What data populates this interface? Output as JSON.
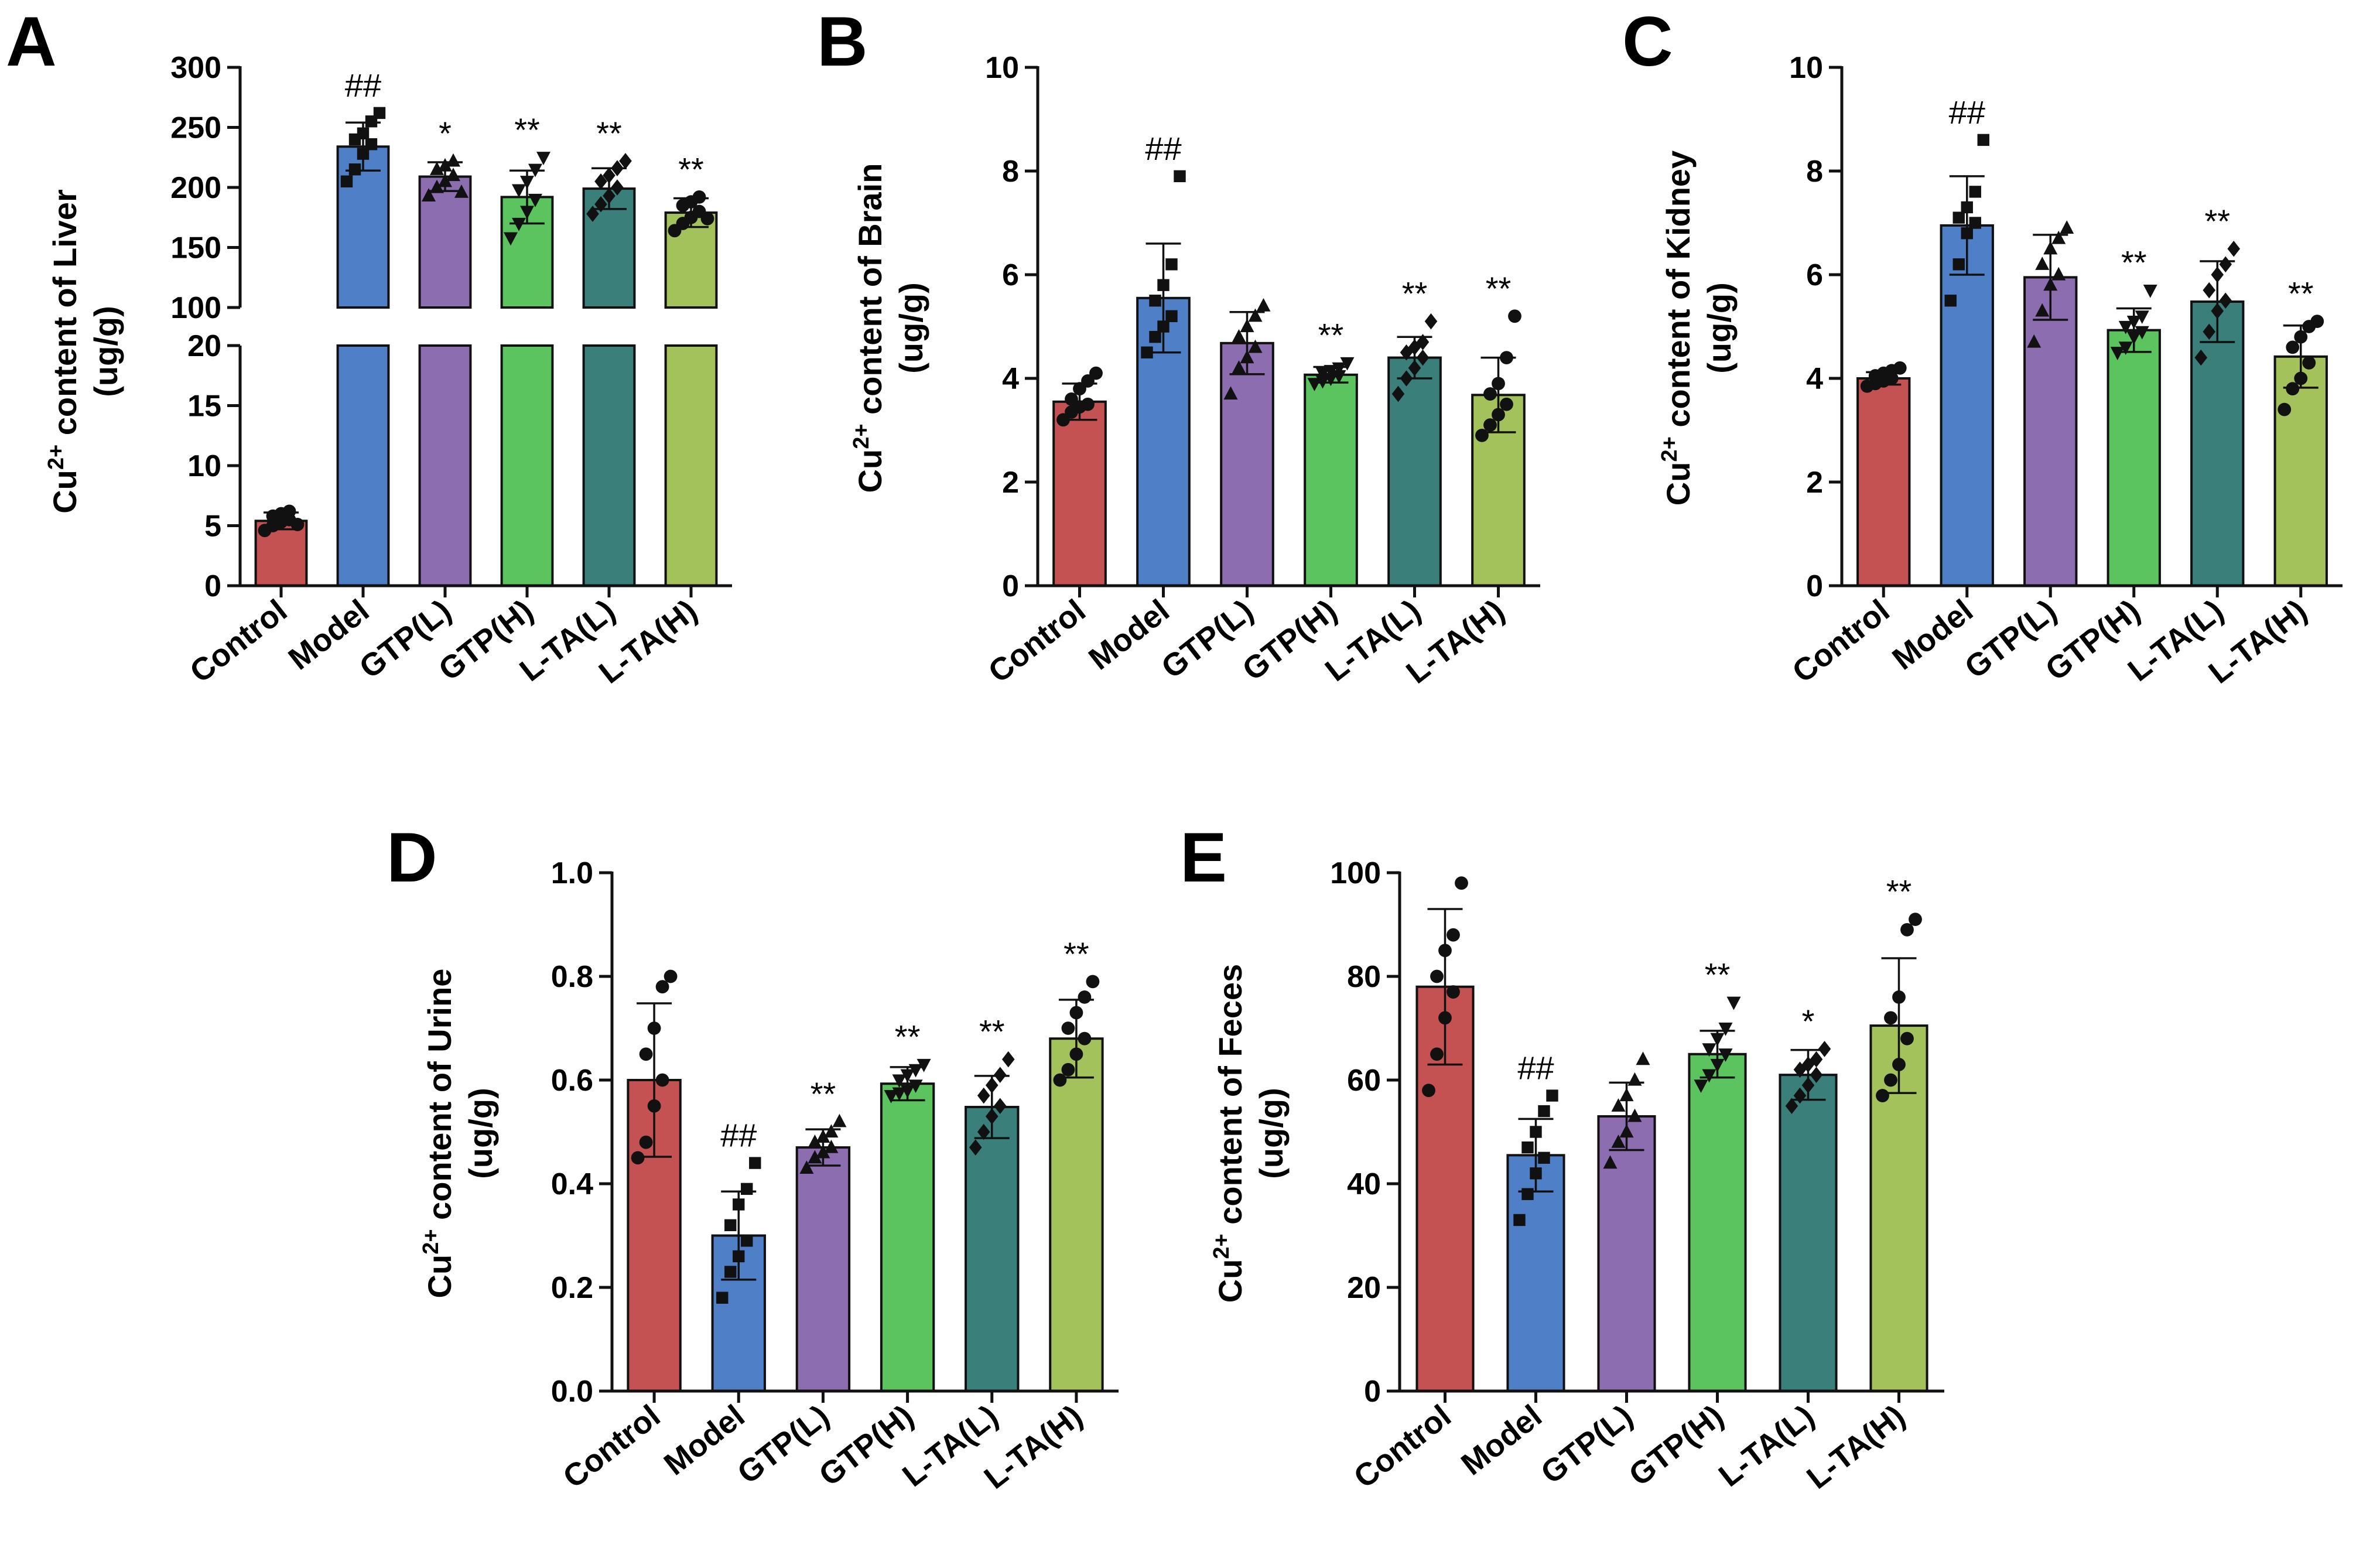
{
  "chart_data": [
    {
      "panel": "A",
      "type": "bar",
      "categories": [
        "Control",
        "Model",
        "GTP(L)",
        "GTP(H)",
        "L-TA(L)",
        "L-TA(H)"
      ],
      "colors": [
        "#c55252",
        "#4f7fc6",
        "#8b6db0",
        "#5bc45e",
        "#3a7f7a",
        "#a3c25c"
      ],
      "ylabel_line1": "Cu",
      "ylabel_sup": "2+",
      "ylabel_line1_rest": " content of Liver",
      "ylabel_line2": "(ug/g)",
      "broken_axis": true,
      "ylim_lower": [
        0,
        20
      ],
      "ylim_upper": [
        100,
        300
      ],
      "ticks_lower": [
        0,
        5,
        10,
        15,
        20
      ],
      "ticks_upper": [
        100,
        150,
        200,
        250,
        300
      ],
      "tick_labels_lower": [
        "0",
        "5",
        "10",
        "15",
        "20"
      ],
      "tick_labels_upper": [
        "100",
        "150",
        "200",
        "250",
        "300"
      ],
      "values": [
        5.4,
        234,
        209,
        192,
        199,
        179
      ],
      "sd": [
        0.7,
        20,
        12,
        22,
        17,
        12
      ],
      "markers": [
        "circle",
        "square",
        "triangle",
        "tri-down",
        "diamond",
        "circle"
      ],
      "points": [
        [
          4.6,
          5.0,
          5.3,
          5.5,
          5.8,
          6.0,
          6.2,
          5.1
        ],
        [
          205,
          215,
          228,
          236,
          240,
          245,
          255,
          262
        ],
        [
          193,
          200,
          205,
          210,
          215,
          218,
          222,
          196
        ],
        [
          158,
          170,
          180,
          190,
          198,
          205,
          215,
          225
        ],
        [
          178,
          186,
          193,
          200,
          205,
          210,
          216,
          222
        ],
        [
          164,
          170,
          175,
          180,
          185,
          188,
          192,
          174
        ]
      ],
      "significance": [
        "",
        "##",
        "*",
        "**",
        "**",
        "**"
      ]
    },
    {
      "panel": "B",
      "type": "bar",
      "categories": [
        "Control",
        "Model",
        "GTP(L)",
        "GTP(H)",
        "L-TA(L)",
        "L-TA(H)"
      ],
      "colors": [
        "#c55252",
        "#4f7fc6",
        "#8b6db0",
        "#5bc45e",
        "#3a7f7a",
        "#a3c25c"
      ],
      "ylabel_line1": "Cu",
      "ylabel_sup": "2+",
      "ylabel_line1_rest": " content of Brain",
      "ylabel_line2": "(ug/g)",
      "ylim": [
        0,
        10
      ],
      "ticks": [
        0,
        2,
        4,
        6,
        8,
        10
      ],
      "tick_labels": [
        "0",
        "2",
        "4",
        "6",
        "8",
        "10"
      ],
      "values": [
        3.55,
        5.55,
        4.68,
        4.07,
        4.4,
        3.68
      ],
      "sd": [
        0.35,
        1.05,
        0.6,
        0.15,
        0.4,
        0.72
      ],
      "markers": [
        "circle",
        "square",
        "triangle",
        "tri-down",
        "diamond",
        "circle"
      ],
      "points": [
        [
          3.2,
          3.35,
          3.45,
          3.5,
          3.6,
          3.8,
          3.95,
          4.1
        ],
        [
          4.5,
          4.8,
          5.0,
          5.2,
          5.5,
          5.8,
          6.2,
          7.9
        ],
        [
          3.7,
          4.2,
          4.4,
          4.6,
          4.8,
          5.0,
          5.2,
          5.4
        ],
        [
          3.9,
          3.95,
          4.0,
          4.05,
          4.1,
          4.15,
          4.2,
          4.3
        ],
        [
          3.7,
          4.0,
          4.2,
          4.4,
          4.5,
          4.6,
          4.7,
          5.1
        ],
        [
          2.9,
          3.1,
          3.3,
          3.5,
          3.7,
          3.9,
          4.4,
          5.2
        ]
      ],
      "significance": [
        "",
        "##",
        "",
        "**",
        "**",
        "**"
      ]
    },
    {
      "panel": "C",
      "type": "bar",
      "categories": [
        "Control",
        "Model",
        "GTP(L)",
        "GTP(H)",
        "L-TA(L)",
        "L-TA(H)"
      ],
      "colors": [
        "#c55252",
        "#4f7fc6",
        "#8b6db0",
        "#5bc45e",
        "#3a7f7a",
        "#a3c25c"
      ],
      "ylabel_line1": "Cu",
      "ylabel_sup": "2+",
      "ylabel_line1_rest": " content of Kidney",
      "ylabel_line2": "(ug/g)",
      "ylim": [
        0,
        10
      ],
      "ticks": [
        0,
        2,
        4,
        6,
        8,
        10
      ],
      "tick_labels": [
        "0",
        "2",
        "4",
        "6",
        "8",
        "10"
      ],
      "values": [
        4.0,
        6.95,
        5.95,
        4.93,
        5.48,
        4.42
      ],
      "sd": [
        0.12,
        0.95,
        0.82,
        0.42,
        0.78,
        0.6
      ],
      "markers": [
        "circle",
        "square",
        "triangle",
        "tri-down",
        "diamond",
        "circle"
      ],
      "points": [
        [
          3.85,
          3.9,
          3.95,
          4.0,
          4.05,
          4.1,
          4.15,
          4.2
        ],
        [
          5.5,
          6.2,
          6.8,
          7.0,
          7.1,
          7.3,
          7.6,
          8.6
        ],
        [
          4.7,
          5.3,
          5.8,
          6.0,
          6.2,
          6.5,
          6.7,
          6.9
        ],
        [
          4.5,
          4.6,
          4.8,
          4.9,
          5.0,
          5.1,
          5.2,
          5.7
        ],
        [
          4.4,
          4.9,
          5.3,
          5.5,
          5.7,
          6.0,
          6.2,
          6.5
        ],
        [
          3.4,
          3.8,
          4.0,
          4.3,
          4.6,
          4.8,
          5.0,
          5.1
        ]
      ],
      "significance": [
        "",
        "##",
        "",
        "**",
        "**",
        "**"
      ]
    },
    {
      "panel": "D",
      "type": "bar",
      "categories": [
        "Control",
        "Model",
        "GTP(L)",
        "GTP(H)",
        "L-TA(L)",
        "L-TA(H)"
      ],
      "colors": [
        "#c55252",
        "#4f7fc6",
        "#8b6db0",
        "#5bc45e",
        "#3a7f7a",
        "#a3c25c"
      ],
      "ylabel_line1": "Cu",
      "ylabel_sup": "2+",
      "ylabel_line1_rest": " content of Urine",
      "ylabel_line2": "(ug/g)",
      "ylim": [
        0,
        1.0
      ],
      "ticks": [
        0,
        0.2,
        0.4,
        0.6,
        0.8,
        1.0
      ],
      "tick_labels": [
        "0.0",
        "0.2",
        "0.4",
        "0.6",
        "0.8",
        "1.0"
      ],
      "values": [
        0.6,
        0.3,
        0.47,
        0.593,
        0.548,
        0.68
      ],
      "sd": [
        0.148,
        0.085,
        0.035,
        0.032,
        0.06,
        0.075
      ],
      "markers": [
        "circle",
        "square",
        "triangle",
        "tri-down",
        "diamond",
        "circle"
      ],
      "points": [
        [
          0.45,
          0.48,
          0.55,
          0.6,
          0.65,
          0.7,
          0.78,
          0.8
        ],
        [
          0.18,
          0.23,
          0.26,
          0.29,
          0.32,
          0.36,
          0.39,
          0.44
        ],
        [
          0.43,
          0.45,
          0.46,
          0.47,
          0.48,
          0.49,
          0.5,
          0.52
        ],
        [
          0.57,
          0.575,
          0.58,
          0.59,
          0.6,
          0.61,
          0.62,
          0.63
        ],
        [
          0.47,
          0.5,
          0.53,
          0.55,
          0.57,
          0.59,
          0.61,
          0.64
        ],
        [
          0.6,
          0.62,
          0.65,
          0.68,
          0.7,
          0.73,
          0.76,
          0.79
        ]
      ],
      "significance": [
        "",
        "##",
        "**",
        "**",
        "**",
        "**"
      ]
    },
    {
      "panel": "E",
      "type": "bar",
      "categories": [
        "Control",
        "Model",
        "GTP(L)",
        "GTP(H)",
        "L-TA(L)",
        "L-TA(H)"
      ],
      "colors": [
        "#c55252",
        "#4f7fc6",
        "#8b6db0",
        "#5bc45e",
        "#3a7f7a",
        "#a3c25c"
      ],
      "ylabel_line1": "Cu",
      "ylabel_sup": "2+",
      "ylabel_line1_rest": " content of Feces",
      "ylabel_line2": "(ug/g)",
      "ylim": [
        0,
        100
      ],
      "ticks": [
        0,
        20,
        40,
        60,
        80,
        100
      ],
      "tick_labels": [
        "0",
        "20",
        "40",
        "60",
        "80",
        "100"
      ],
      "values": [
        78,
        45.5,
        53,
        65,
        61,
        70.5
      ],
      "sd": [
        15,
        7,
        6.5,
        4.5,
        4.8,
        13
      ],
      "markers": [
        "circle",
        "square",
        "triangle",
        "tri-down",
        "diamond",
        "circle"
      ],
      "points": [
        [
          58,
          65,
          72,
          77,
          80,
          85,
          88,
          98
        ],
        [
          33,
          38,
          42,
          45,
          47,
          50,
          54,
          57
        ],
        [
          44,
          48,
          50,
          53,
          55,
          57,
          60,
          64
        ],
        [
          59,
          61,
          63,
          65,
          66,
          68,
          70,
          75
        ],
        [
          55,
          57,
          59,
          61,
          62,
          63,
          64,
          66
        ],
        [
          57,
          60,
          63,
          68,
          72,
          76,
          89,
          91
        ]
      ],
      "significance": [
        "",
        "##",
        "",
        "**",
        "*",
        "**"
      ]
    }
  ]
}
